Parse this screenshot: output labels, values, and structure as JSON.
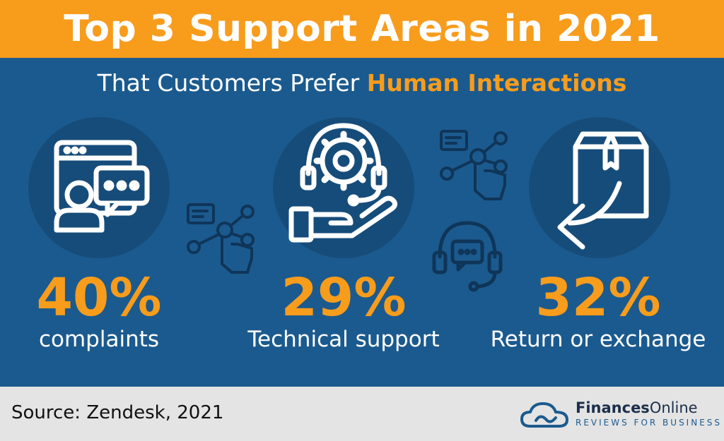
{
  "title": "Top 3 Support Areas in 2021",
  "subtitle": {
    "prefix": "That Customers Prefer",
    "highlight": "Human Interactions"
  },
  "colors": {
    "accent": "#f89c1c",
    "background": "#1b5a8e",
    "circle": "#164c7a",
    "footer": "#e4e4e4"
  },
  "stats": [
    {
      "value": "40%",
      "label": "complaints",
      "icon": "chat-window-person-icon"
    },
    {
      "value": "29%",
      "label": "Technical support",
      "icon": "gear-headset-hand-icon"
    },
    {
      "value": "32%",
      "label": "Return or exchange",
      "icon": "box-return-arrow-icon"
    }
  ],
  "footer": {
    "source": "Source: Zendesk, 2021",
    "brand_bold": "Finances",
    "brand_rest": "Online",
    "tagline": "REVIEWS FOR BUSINESS"
  }
}
